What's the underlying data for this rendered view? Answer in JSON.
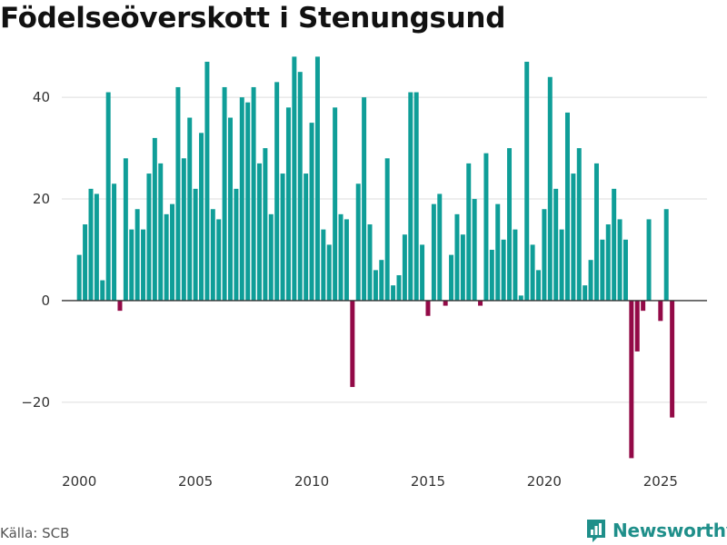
{
  "title": "Födelseöverskott i Stenungsund",
  "source": "Källa: SCB",
  "brand": {
    "name": "Newsworthy",
    "icon": "newsworthy-logo-icon"
  },
  "colors": {
    "positive": "#0f9e98",
    "negative": "#930a47",
    "grid": "#dddddd",
    "zero": "#333333"
  },
  "chart_data": {
    "type": "bar",
    "title": "Födelseöverskott i Stenungsund",
    "xlabel": "",
    "ylabel": "",
    "frequency": "quarterly",
    "start": 2000,
    "xlim": [
      1999.25,
      2027.0
    ],
    "ylim": [
      -32,
      52
    ],
    "x_ticks": [
      2000,
      2005,
      2010,
      2015,
      2020,
      2025
    ],
    "y_ticks": [
      -20,
      0,
      20,
      40
    ],
    "y_tick_labels": [
      "−20",
      "0",
      "20",
      "40"
    ],
    "values": [
      9,
      15,
      22,
      21,
      4,
      41,
      23,
      -2,
      28,
      14,
      18,
      14,
      25,
      32,
      27,
      17,
      19,
      42,
      28,
      36,
      22,
      33,
      47,
      18,
      16,
      42,
      36,
      22,
      40,
      39,
      42,
      27,
      30,
      17,
      43,
      25,
      38,
      48,
      45,
      25,
      35,
      48,
      14,
      11,
      38,
      17,
      16,
      -17,
      23,
      40,
      15,
      6,
      8,
      28,
      3,
      5,
      13,
      41,
      41,
      11,
      -3,
      19,
      21,
      -1,
      9,
      17,
      13,
      27,
      20,
      -1,
      29,
      10,
      19,
      12,
      30,
      14,
      1,
      47,
      11,
      6,
      18,
      44,
      22,
      14,
      37,
      25,
      30,
      3,
      8,
      27,
      12,
      15,
      22,
      16,
      12,
      -31,
      -10,
      -2,
      16,
      0,
      -4,
      18,
      -23
    ]
  }
}
